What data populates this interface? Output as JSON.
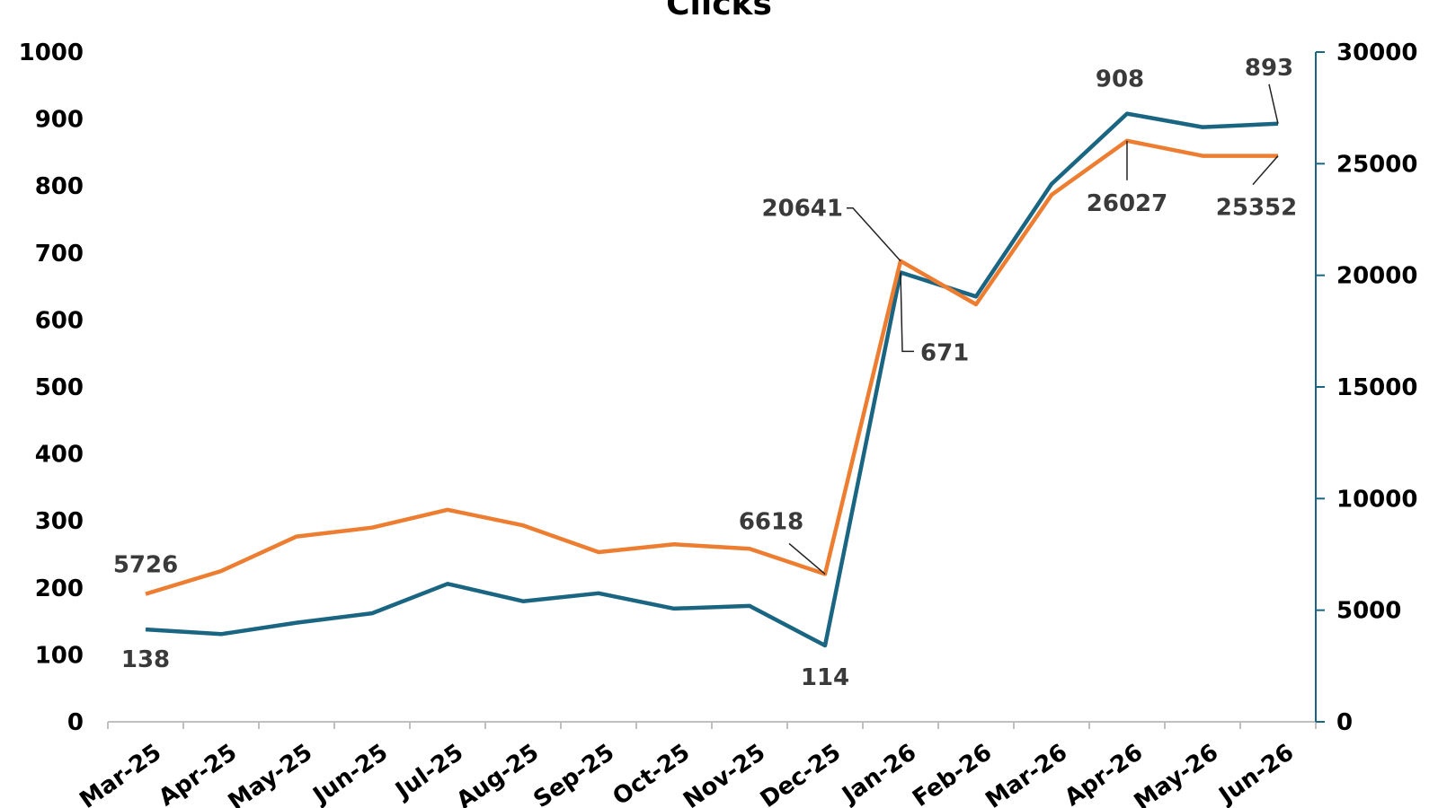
{
  "chart_data": {
    "type": "line",
    "title": "Clicks",
    "categories": [
      "Mar-25",
      "Apr-25",
      "May-25",
      "Jun-25",
      "Jul-25",
      "Aug-25",
      "Sep-25",
      "Oct-25",
      "Nov-25",
      "Dec-25",
      "Jan-26",
      "Feb-26",
      "Mar-26",
      "Apr-26",
      "May-26",
      "Jun-26"
    ],
    "y_left": {
      "min": 0,
      "max": 1000,
      "ticks": [
        0,
        100,
        200,
        300,
        400,
        500,
        600,
        700,
        800,
        900,
        1000
      ]
    },
    "y_right": {
      "min": 0,
      "max": 30000,
      "ticks": [
        0,
        5000,
        10000,
        15000,
        20000,
        25000,
        30000
      ]
    },
    "series": [
      {
        "axis": "left",
        "color": "#1a6582",
        "values": [
          138,
          131,
          148,
          162,
          206,
          180,
          192,
          169,
          173,
          114,
          671,
          635,
          803,
          908,
          888,
          893
        ]
      },
      {
        "axis": "right",
        "color": "#ed7d31",
        "values": [
          5726,
          6750,
          8300,
          8700,
          9500,
          8800,
          7600,
          7950,
          7750,
          6618,
          20641,
          18700,
          23600,
          26027,
          25352,
          25352
        ]
      }
    ],
    "data_labels": [
      {
        "series": 0,
        "index": 0,
        "text": "138"
      },
      {
        "series": 0,
        "index": 9,
        "text": "114"
      },
      {
        "series": 0,
        "index": 10,
        "text": "671"
      },
      {
        "series": 0,
        "index": 13,
        "text": "908"
      },
      {
        "series": 0,
        "index": 15,
        "text": "893"
      },
      {
        "series": 1,
        "index": 0,
        "text": "5726"
      },
      {
        "series": 1,
        "index": 9,
        "text": "6618"
      },
      {
        "series": 1,
        "index": 10,
        "text": "20641"
      },
      {
        "series": 1,
        "index": 13,
        "text": "26027"
      },
      {
        "series": 1,
        "index": 15,
        "text": "25352"
      }
    ],
    "grid": false,
    "legend": "none"
  }
}
